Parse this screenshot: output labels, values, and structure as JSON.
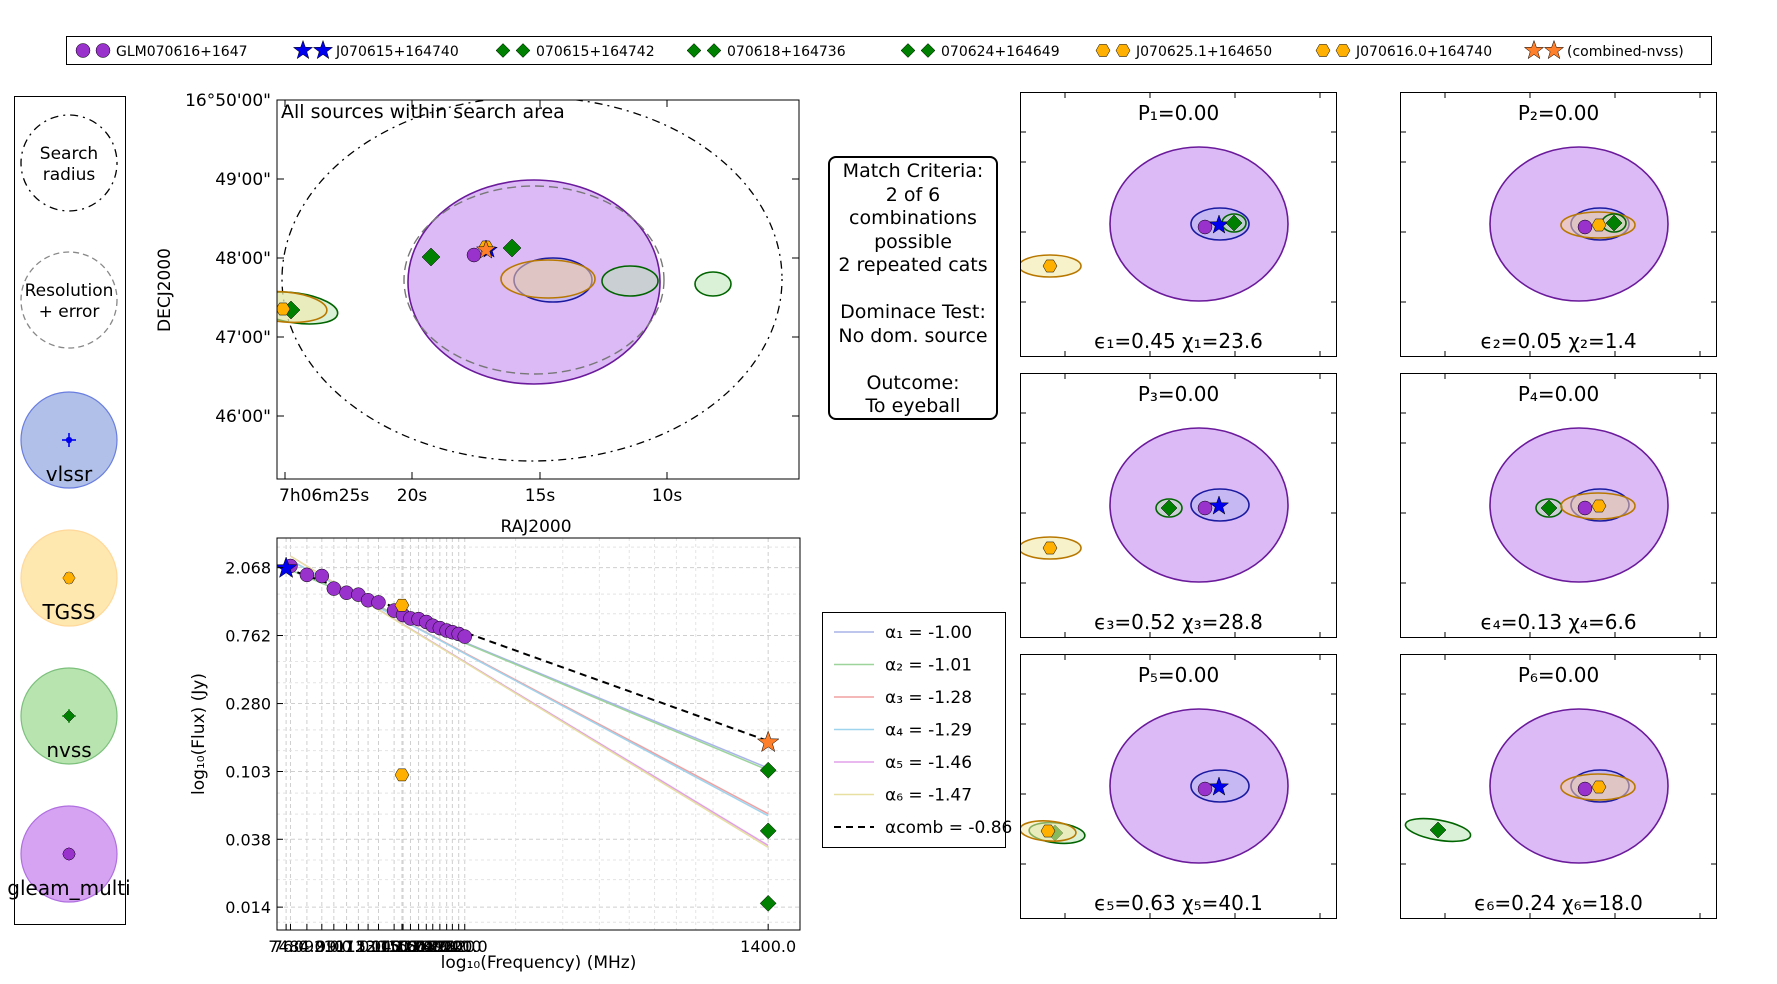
{
  "legend": {
    "entries": [
      {
        "label": "GLM070616+1647",
        "marker": "circle",
        "color": "#9932cc"
      },
      {
        "label": "J070615+164740",
        "marker": "star",
        "color": "#0000ee"
      },
      {
        "label": "070615+164742",
        "marker": "diamond",
        "color": "#008000"
      },
      {
        "label": "070618+164736",
        "marker": "diamond",
        "color": "#008000"
      },
      {
        "label": "070624+164649",
        "marker": "diamond",
        "color": "#008000"
      },
      {
        "label": "J070625.1+164650",
        "marker": "hexagon",
        "color": "#ffb000"
      },
      {
        "label": "J070616.0+164740",
        "marker": "hexagon",
        "color": "#ffb000"
      },
      {
        "label": "(combined-nvss)",
        "marker": "star",
        "color": "#ff7f2a"
      }
    ]
  },
  "key_panel": {
    "search_radius": "Search\nradius",
    "resolution": "Resolution\n+ error",
    "catalogues": [
      {
        "name": "vlssr",
        "fill": "#b0c0e8",
        "edge": "#6a7ee0",
        "marker_color": "#0000ee",
        "marker": "plus"
      },
      {
        "name": "TGSS",
        "fill": "#ffe7b0",
        "edge": "#ffd89a",
        "marker_color": "#ffb000",
        "marker": "hexagon"
      },
      {
        "name": "nvss",
        "fill": "#b8e4b0",
        "edge": "#7cc07c",
        "marker_color": "#008000",
        "marker": "diamond"
      },
      {
        "name": "gleam_multi",
        "fill": "#d6a3f2",
        "edge": "#b070e0",
        "marker_color": "#9932cc",
        "marker": "circle"
      }
    ]
  },
  "sky_plot": {
    "title": "All sources within search area",
    "xlabel": "RAJ2000",
    "ylabel": "DECJ2000",
    "x_ticks": [
      "7h06m25s",
      "20s",
      "15s",
      "10s"
    ],
    "y_ticks": [
      "16°50'00\"",
      "49'00\"",
      "48'00\"",
      "47'00\"",
      "46'00\""
    ]
  },
  "match_criteria": {
    "lines": [
      "Match Criteria:",
      "2 of 6",
      "combinations",
      "possible",
      "2 repeated cats",
      "",
      "Dominace Test:",
      "No dom. source",
      "",
      "Outcome:",
      "To eyeball"
    ]
  },
  "sed_legend": {
    "entries": [
      {
        "label": "α₁ = -1.00",
        "color": "#a9b4e8"
      },
      {
        "label": "α₂ = -1.01",
        "color": "#9cd49c"
      },
      {
        "label": "α₃ = -1.28",
        "color": "#f0a0a0"
      },
      {
        "label": "α₄ = -1.29",
        "color": "#9fd4ee"
      },
      {
        "label": "α₅ = -1.46",
        "color": "#e0a0e8"
      },
      {
        "label": "α₆ = -1.47",
        "color": "#e8e0a0"
      },
      {
        "label": "αcomb = -0.86",
        "color": "#000000",
        "dashed": true
      }
    ]
  },
  "combo_panels": [
    {
      "p": "P₁=0.00",
      "stats": "ϵ₁=0.45 χ₁=23.6"
    },
    {
      "p": "P₂=0.00",
      "stats": "ϵ₂=0.05 χ₂=1.4"
    },
    {
      "p": "P₃=0.00",
      "stats": "ϵ₃=0.52 χ₃=28.8"
    },
    {
      "p": "P₄=0.00",
      "stats": "ϵ₄=0.13 χ₄=6.6"
    },
    {
      "p": "P₅=0.00",
      "stats": "ϵ₅=0.63 χ₅=40.1"
    },
    {
      "p": "P₆=0.00",
      "stats": "ϵ₆=0.24 χ₆=18.0"
    }
  ],
  "chart_data": {
    "type": "scatter",
    "xlabel": "log₁₀(Frequency) (MHz)",
    "ylabel": "log₁₀(Flux) (Jy)",
    "x_scale": "log",
    "y_scale": "log",
    "xlim": [
      70,
      1700
    ],
    "ylim": [
      0.01,
      3.2
    ],
    "x_tick_labels": [
      "74.0",
      "76.0",
      "84.0",
      "92.0",
      "99.0",
      "107.0",
      "115.0",
      "122.0",
      "130.0",
      "143.0",
      "150.0",
      "151.0",
      "158.0",
      "166.0",
      "174.0",
      "181.0",
      "189.0",
      "197.0",
      "204.0",
      "212.0",
      "220.0",
      "1400.0"
    ],
    "x_tick_values": [
      74,
      76,
      84,
      92,
      99,
      107,
      115,
      122,
      130,
      143,
      150,
      151,
      158,
      166,
      174,
      181,
      189,
      197,
      204,
      212,
      220,
      1400
    ],
    "y_tick_labels": [
      "2.068",
      "0.762",
      "0.280",
      "0.103",
      "0.038",
      "0.014"
    ],
    "y_tick_values": [
      2.068,
      0.762,
      0.28,
      0.103,
      0.038,
      0.014
    ],
    "grid": true,
    "series": [
      {
        "name": "gleam_multi",
        "marker": "circle",
        "color": "#9932cc",
        "x": [
          76,
          84,
          92,
          99,
          107,
          115,
          122,
          130,
          143,
          151,
          158,
          166,
          174,
          181,
          189,
          197,
          204,
          212,
          220
        ],
        "y": [
          2.12,
          1.86,
          1.83,
          1.52,
          1.43,
          1.39,
          1.28,
          1.24,
          1.1,
          1.03,
          0.98,
          0.97,
          0.93,
          0.88,
          0.85,
          0.82,
          0.8,
          0.78,
          0.75
        ]
      },
      {
        "name": "vlssr",
        "marker": "star",
        "color": "#0000ee",
        "x": [
          74
        ],
        "y": [
          2.05
        ]
      },
      {
        "name": "TGSS",
        "marker": "hexagon",
        "color": "#ffb000",
        "x": [
          150,
          150
        ],
        "y": [
          1.19,
          0.098
        ]
      },
      {
        "name": "nvss",
        "marker": "diamond",
        "color": "#008000",
        "x": [
          1400,
          1400,
          1400
        ],
        "y": [
          0.105,
          0.043,
          0.0148
        ]
      },
      {
        "name": "combined-nvss",
        "marker": "star",
        "color": "#ff7f2a",
        "x": [
          1400
        ],
        "y": [
          0.158
        ]
      }
    ],
    "fits": [
      {
        "alpha": -1.0,
        "color": "#a9b4e8",
        "x": [
          74,
          1400
        ],
        "y": [
          2.05,
          0.1083
        ]
      },
      {
        "alpha": -1.01,
        "color": "#9cd49c",
        "x": [
          74,
          1400
        ],
        "y": [
          2.05,
          0.105
        ]
      },
      {
        "alpha": -1.28,
        "color": "#f0a0a0",
        "x": [
          76,
          1400
        ],
        "y": [
          2.3,
          0.0553
        ]
      },
      {
        "alpha": -1.29,
        "color": "#9fd4ee",
        "x": [
          76,
          1400
        ],
        "y": [
          2.3,
          0.0537
        ]
      },
      {
        "alpha": -1.46,
        "color": "#e0a0e8",
        "x": [
          76,
          1400
        ],
        "y": [
          2.45,
          0.0347
        ]
      },
      {
        "alpha": -1.47,
        "color": "#e8e0a0",
        "x": [
          76,
          1400
        ],
        "y": [
          2.45,
          0.0337
        ]
      },
      {
        "alpha": -0.86,
        "color": "#000000",
        "dashed": true,
        "x": [
          74,
          1400
        ],
        "y": [
          2.05,
          0.1613
        ]
      }
    ]
  }
}
